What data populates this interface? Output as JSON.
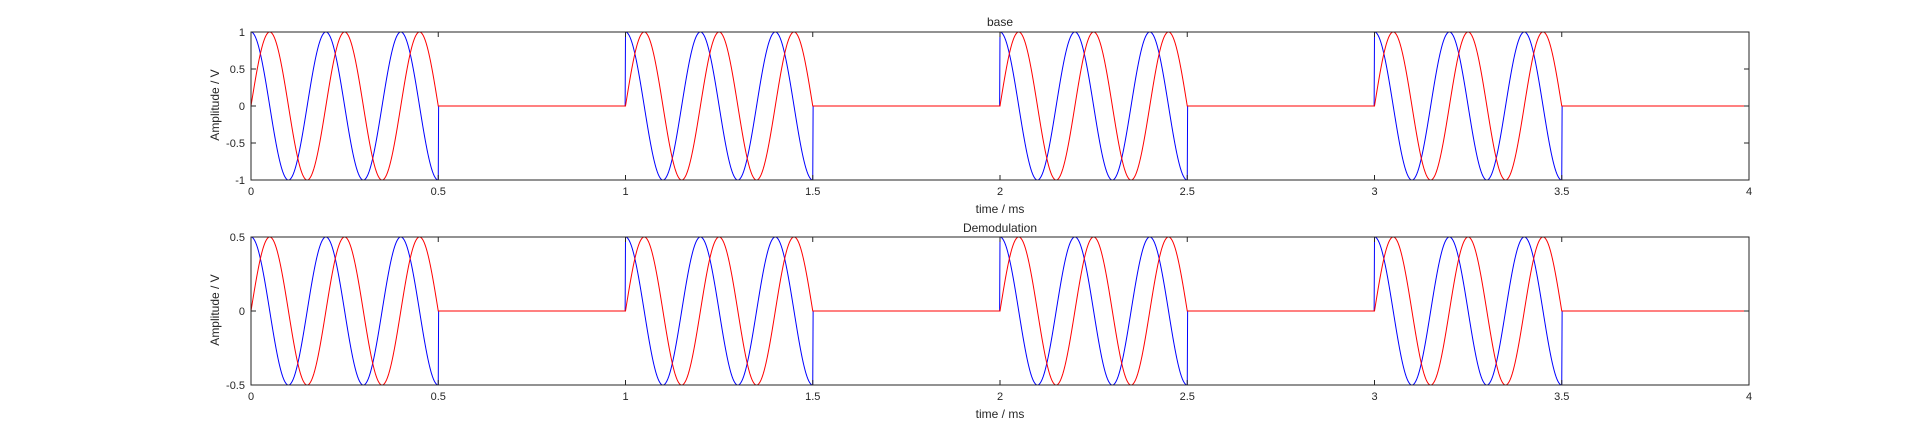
{
  "chart_data": [
    {
      "type": "line",
      "title": "base",
      "xlabel": "time / ms",
      "ylabel": "Amplitude / V",
      "xlim": [
        0,
        4
      ],
      "ylim": [
        -1,
        1
      ],
      "xticks": [
        "0",
        "0.5",
        "1",
        "1.5",
        "2",
        "2.5",
        "3",
        "3.5",
        "4"
      ],
      "yticks": [
        "-1",
        "-0.5",
        "0",
        "0.5",
        "1"
      ],
      "burst_starts": [
        0,
        1,
        2,
        3
      ],
      "burst_duration": 0.5,
      "carrier_frequency_khz": 5,
      "series": [
        {
          "function": "cos",
          "amplitude": 1,
          "color": "#0000ff"
        },
        {
          "function": "sin",
          "amplitude": 1,
          "color": "#ff0000"
        }
      ],
      "grid": false
    },
    {
      "type": "line",
      "title": "Demodulation",
      "xlabel": "time / ms",
      "ylabel": "Amplitude / V",
      "xlim": [
        0,
        4
      ],
      "ylim": [
        -0.5,
        0.5
      ],
      "xticks": [
        "0",
        "0.5",
        "1",
        "1.5",
        "2",
        "2.5",
        "3",
        "3.5",
        "4"
      ],
      "yticks": [
        "-0.5",
        "0",
        "0.5"
      ],
      "burst_starts": [
        0,
        1,
        2,
        3
      ],
      "burst_duration": 0.5,
      "carrier_frequency_khz": 5,
      "series": [
        {
          "function": "cos",
          "amplitude": 0.5,
          "color": "#0000ff"
        },
        {
          "function": "sin",
          "amplitude": 0.5,
          "color": "#ff0000"
        }
      ],
      "grid": false
    }
  ]
}
